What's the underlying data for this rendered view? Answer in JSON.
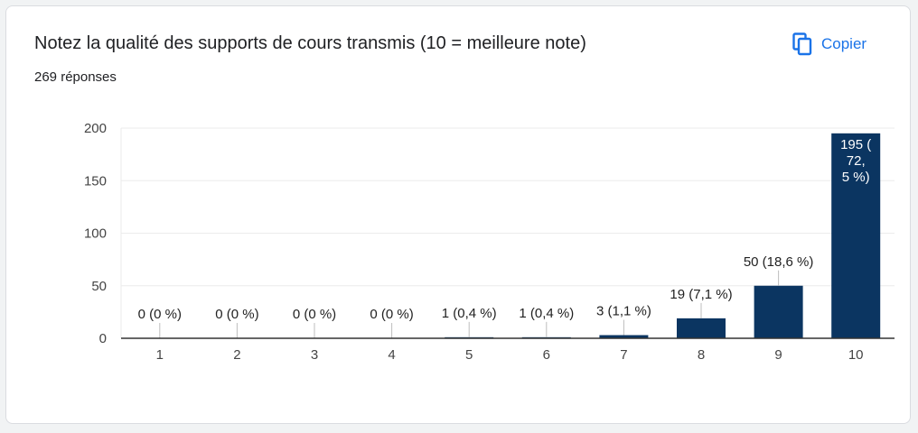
{
  "card": {
    "title": "Notez la qualité des supports de cours transmis (10 = meilleure note)",
    "response_count": "269 réponses",
    "copy_label": "Copier",
    "copy_icon": "copy-icon"
  },
  "colors": {
    "bar": "#0b3561",
    "accent": "#1a73e8",
    "grid": "#ebebeb",
    "axis": "#333333"
  },
  "chart_data": {
    "type": "bar",
    "categories": [
      "1",
      "2",
      "3",
      "4",
      "5",
      "6",
      "7",
      "8",
      "9",
      "10"
    ],
    "values": [
      0,
      0,
      0,
      0,
      1,
      1,
      3,
      19,
      50,
      195
    ],
    "data_labels": [
      "0 (0 %)",
      "0 (0 %)",
      "0 (0 %)",
      "0 (0 %)",
      "1 (0,4 %)",
      "1 (0,4 %)",
      "3 (1,1 %)",
      "19 (7,1 %)",
      "50 (18,6 %)",
      "195 (72,5 %)"
    ],
    "yticks": [
      0,
      50,
      100,
      150,
      200
    ],
    "ylim": [
      0,
      200
    ],
    "grid": true,
    "legend": "none"
  }
}
